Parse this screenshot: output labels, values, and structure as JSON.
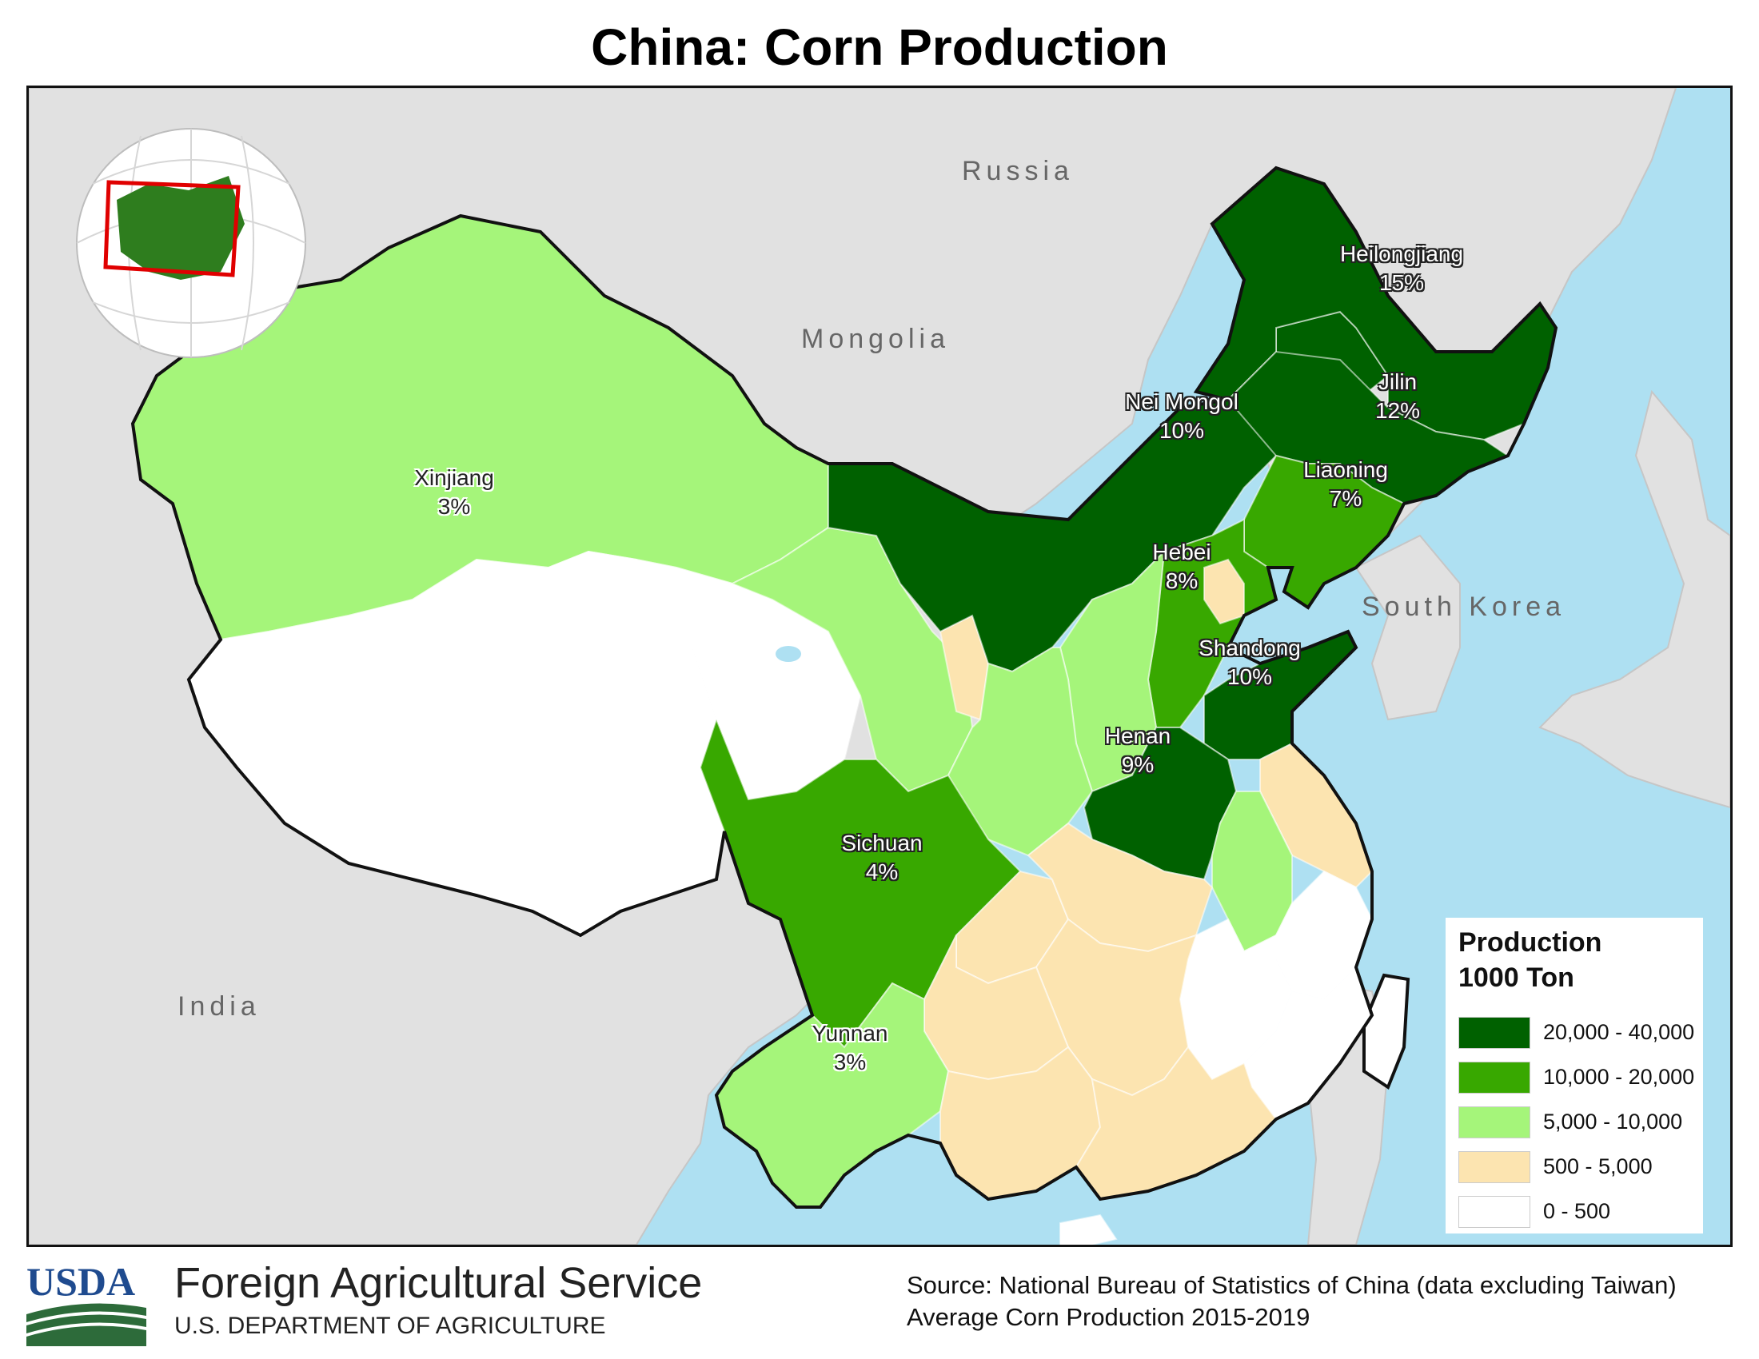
{
  "title": "China: Corn Production",
  "countries": [
    "Russia",
    "Mongolia",
    "South Korea",
    "India"
  ],
  "provinces": [
    {
      "name": "Heilongjiang",
      "share": "15%",
      "category": "20,000 - 40,000"
    },
    {
      "name": "Jilin",
      "share": "12%",
      "category": "20,000 - 40,000"
    },
    {
      "name": "Nei Mongol",
      "share": "10%",
      "category": "20,000 - 40,000"
    },
    {
      "name": "Liaoning",
      "share": "7%",
      "category": "10,000 - 20,000"
    },
    {
      "name": "Hebei",
      "share": "8%",
      "category": "10,000 - 20,000"
    },
    {
      "name": "Shandong",
      "share": "10%",
      "category": "20,000 - 40,000"
    },
    {
      "name": "Henan",
      "share": "9%",
      "category": "20,000 - 40,000"
    },
    {
      "name": "Xinjiang",
      "share": "3%",
      "category": "5,000 - 10,000"
    },
    {
      "name": "Sichuan",
      "share": "4%",
      "category": "10,000 - 20,000"
    },
    {
      "name": "Yunnan",
      "share": "3%",
      "category": "5,000 - 10,000"
    }
  ],
  "legend": {
    "title_line1": "Production",
    "title_line2": "1000 Ton",
    "items": [
      {
        "label": "20,000 - 40,000",
        "color": "#006100"
      },
      {
        "label": "10,000 - 20,000",
        "color": "#38a800"
      },
      {
        "label": "5,000 - 10,000",
        "color": "#a5f57a"
      },
      {
        "label": "500 - 5,000",
        "color": "#fce4b0"
      },
      {
        "label": "0 - 500",
        "color": "#ffffff"
      }
    ]
  },
  "colors": {
    "water": "#aee0f2",
    "neighbor_land": "#e1e1e1",
    "inset_frame": "#e00000"
  },
  "footer": {
    "logo_text": "USDA",
    "agency": "Foreign Agricultural Service",
    "department": "U.S. DEPARTMENT OF AGRICULTURE",
    "source": "Source: National Bureau of Statistics of China (data excluding Taiwan)",
    "period": "Average Corn Production 2015-2019"
  }
}
